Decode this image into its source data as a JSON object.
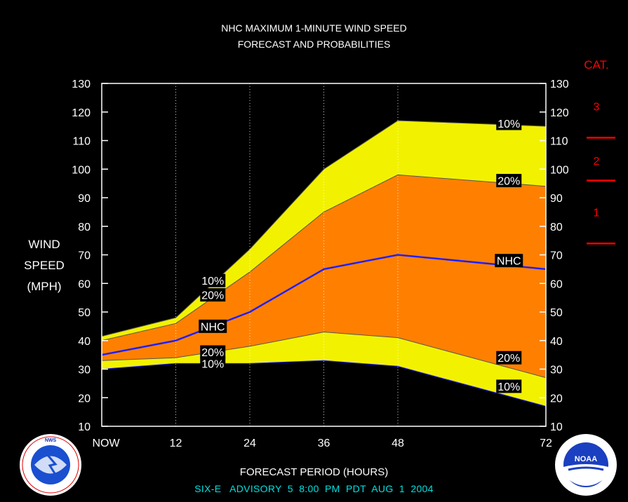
{
  "title_line1": "NHC MAXIMUM 1-MINUTE WIND SPEED",
  "title_line2": "FORECAST AND PROBABILITIES",
  "ylabel_lines": [
    "WIND",
    "SPEED",
    "(MPH)"
  ],
  "xlabel": "FORECAST PERIOD (HOURS)",
  "advisory": "SIX-E   ADVISORY  5  8:00  PM  PDT  AUG  1  2004",
  "cat_header": "CAT.",
  "cat_labels": [
    {
      "label": "3",
      "value": 122
    },
    {
      "label": "2",
      "value": 103
    },
    {
      "label": "1",
      "value": 85
    }
  ],
  "cat_thresholds": [
    111,
    96,
    74
  ],
  "logos": {
    "left_text": "NATIONAL WEATHER SERVICE",
    "right_text": "NOAA"
  },
  "colors": {
    "background": "#000000",
    "outer_band": "#f2f200",
    "inner_band": "#ff8000",
    "nhc_line": "#2020ff",
    "category": "#ff0000",
    "advisory": "#00e0e0",
    "text": "#ffffff"
  },
  "chart_data": {
    "type": "area",
    "x_ticks": [
      {
        "value": 0,
        "label": "NOW"
      },
      {
        "value": 12,
        "label": "12"
      },
      {
        "value": 24,
        "label": "24"
      },
      {
        "value": 36,
        "label": "36"
      },
      {
        "value": 48,
        "label": "48"
      },
      {
        "value": 72,
        "label": "72"
      }
    ],
    "xlim": [
      0,
      72
    ],
    "ylim": [
      10,
      130
    ],
    "y_ticks": [
      10,
      20,
      30,
      40,
      50,
      60,
      70,
      80,
      90,
      100,
      110,
      120,
      130
    ],
    "x": [
      0,
      12,
      24,
      36,
      48,
      72
    ],
    "series": [
      {
        "name": "10%",
        "values": [
          41.5,
          48,
          72,
          100,
          117,
          115
        ]
      },
      {
        "name": "20%",
        "values": [
          40,
          46,
          64,
          85,
          98,
          94
        ]
      },
      {
        "name": "NHC",
        "values": [
          35,
          40,
          50,
          65,
          70,
          65
        ]
      },
      {
        "name": "20%",
        "values": [
          33,
          34,
          38,
          43,
          41,
          27
        ]
      },
      {
        "name": "10%",
        "values": [
          30,
          32,
          32,
          33,
          31,
          17
        ]
      }
    ],
    "upper_band_start_x": 18,
    "data_labels": [
      {
        "text": "10%",
        "x": 66,
        "y": 116
      },
      {
        "text": "20%",
        "x": 66,
        "y": 96
      },
      {
        "text": "NHC",
        "x": 66,
        "y": 68
      },
      {
        "text": "20%",
        "x": 66,
        "y": 34
      },
      {
        "text": "10%",
        "x": 66,
        "y": 24
      },
      {
        "text": "10%",
        "x": 18,
        "y": 61
      },
      {
        "text": "20%",
        "x": 18,
        "y": 56
      },
      {
        "text": "NHC",
        "x": 18,
        "y": 45
      },
      {
        "text": "20%",
        "x": 18,
        "y": 36
      },
      {
        "text": "10%",
        "x": 18,
        "y": 32
      }
    ]
  }
}
